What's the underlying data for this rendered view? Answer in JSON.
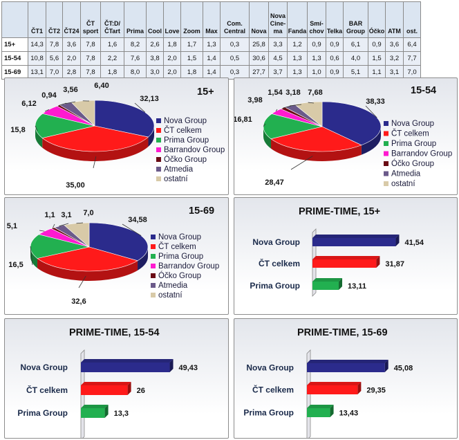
{
  "table": {
    "headers": [
      "",
      "ČT1",
      "ČT2",
      "ČT24",
      "ČT sport",
      "ČT:D/ ČTart",
      "Prima",
      "Cool",
      "Love",
      "Zoom",
      "Max",
      "Com. Central",
      "Nova",
      "Nova Cine- ma",
      "Fanda",
      "Smí- chov",
      "Telka",
      "BAR Group",
      "Óčko",
      "ATM",
      "ost."
    ],
    "rows": [
      {
        "label": "15+",
        "values": [
          "14,3",
          "7,8",
          "3,6",
          "7,8",
          "1,6",
          "8,2",
          "2,6",
          "1,8",
          "1,7",
          "1,3",
          "0,3",
          "25,8",
          "3,3",
          "1,2",
          "0,9",
          "0,9",
          "6,1",
          "0,9",
          "3,6",
          "6,4"
        ]
      },
      {
        "label": "15-54",
        "values": [
          "10,8",
          "5,6",
          "2,0",
          "7,8",
          "2,2",
          "7,6",
          "3,8",
          "2,0",
          "1,5",
          "1,4",
          "0,5",
          "30,6",
          "4,5",
          "1,3",
          "1,3",
          "0,6",
          "4,0",
          "1,5",
          "3,2",
          "7,7"
        ]
      },
      {
        "label": "15-69",
        "values": [
          "13,1",
          "7,0",
          "2,8",
          "7,8",
          "1,8",
          "8,0",
          "3,0",
          "2,0",
          "1,8",
          "1,4",
          "0,3",
          "27,7",
          "3,7",
          "1,3",
          "1,0",
          "0,9",
          "5,1",
          "1,1",
          "3,1",
          "7,0"
        ]
      }
    ]
  },
  "colors": {
    "nova": "#2b2b8c",
    "ct": "#ff1a1a",
    "prima": "#22b050",
    "barrandov": "#ff1ad0",
    "ocko": "#6a0a14",
    "atmedia": "#6b5a8a",
    "ostatni": "#d8caa8",
    "header_bg": "#dbe5f1",
    "row_bg": "#e9eef6"
  },
  "chart_data": [
    {
      "type": "pie",
      "title": "15+",
      "legend": [
        "Nova Group",
        "ČT celkem",
        "Prima Group",
        "Barrandov Group",
        "Óčko Group",
        "Atmedia",
        "ostatní"
      ],
      "slices": [
        {
          "name": "Nova Group",
          "value": 32.13,
          "label": "32,13"
        },
        {
          "name": "ČT celkem",
          "value": 35.0,
          "label": "35,00"
        },
        {
          "name": "Prima Group",
          "value": 15.8,
          "label": "15,8"
        },
        {
          "name": "Barrandov Group",
          "value": 6.12,
          "label": "6,12"
        },
        {
          "name": "Óčko Group",
          "value": 0.94,
          "label": "0,94"
        },
        {
          "name": "Atmedia",
          "value": 3.56,
          "label": "3,56"
        },
        {
          "name": "ostatní",
          "value": 6.4,
          "label": "6,40"
        }
      ]
    },
    {
      "type": "pie",
      "title": "15-54",
      "legend": [
        "Nova Group",
        "ČT celkem",
        "Prima Group",
        "Barrandov Group",
        "Óčko Group",
        "Atmedia",
        "ostatní"
      ],
      "slices": [
        {
          "name": "Nova Group",
          "value": 38.33,
          "label": "38,33"
        },
        {
          "name": "ČT celkem",
          "value": 28.47,
          "label": "28,47"
        },
        {
          "name": "Prima Group",
          "value": 16.81,
          "label": "16,81"
        },
        {
          "name": "Barrandov Group",
          "value": 3.98,
          "label": "3,98"
        },
        {
          "name": "Óčko Group",
          "value": 1.54,
          "label": "1,54"
        },
        {
          "name": "Atmedia",
          "value": 3.18,
          "label": "3,18"
        },
        {
          "name": "ostatní",
          "value": 7.68,
          "label": "7,68"
        }
      ]
    },
    {
      "type": "pie",
      "title": "15-69",
      "legend": [
        "Nova Group",
        "ČT celkem",
        "Prima Group",
        "Barrandov Group",
        "Óčko Group",
        "Atmedia",
        "ostatní"
      ],
      "slices": [
        {
          "name": "Nova Group",
          "value": 34.58,
          "label": "34,58"
        },
        {
          "name": "ČT celkem",
          "value": 32.6,
          "label": "32,6"
        },
        {
          "name": "Prima Group",
          "value": 16.5,
          "label": "16,5"
        },
        {
          "name": "Barrandov Group",
          "value": 5.1,
          "label": "5,1"
        },
        {
          "name": "Óčko Group",
          "value": 1.1,
          "label": "1,1"
        },
        {
          "name": "Atmedia",
          "value": 3.1,
          "label": "3,1"
        },
        {
          "name": "ostatní",
          "value": 7.0,
          "label": "7,0"
        }
      ]
    },
    {
      "type": "bar",
      "title": "PRIME-TIME, 15+",
      "categories": [
        "Nova Group",
        "ČT celkem",
        "Prima Group"
      ],
      "values": [
        41.54,
        31.87,
        13.11
      ],
      "labels": [
        "41,54",
        "31,87",
        "13,11"
      ]
    },
    {
      "type": "bar",
      "title": "PRIME-TIME, 15-54",
      "categories": [
        "Nova Group",
        "ČT celkem",
        "Prima Group"
      ],
      "values": [
        49.43,
        26,
        13.3
      ],
      "labels": [
        "49,43",
        "26",
        "13,3"
      ]
    },
    {
      "type": "bar",
      "title": "PRIME-TIME, 15-69",
      "categories": [
        "Nova Group",
        "ČT celkem",
        "Prima Group"
      ],
      "values": [
        45.08,
        29.35,
        13.43
      ],
      "labels": [
        "45,08",
        "29,35",
        "13,43"
      ]
    }
  ]
}
